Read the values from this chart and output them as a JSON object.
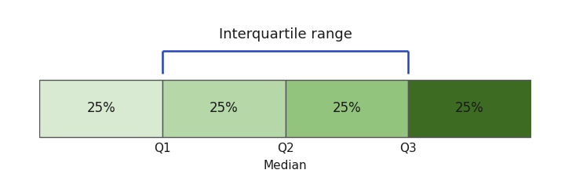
{
  "bar_colors": [
    "#d9ead3",
    "#b6d7a8",
    "#93c47d",
    "#3d6b21"
  ],
  "labels": [
    "25%",
    "25%",
    "25%",
    "25%"
  ],
  "quartile_labels": [
    "Q1",
    "Q2",
    "Q3"
  ],
  "median_label": "Median",
  "iqr_label": "Interquartile range",
  "background_color": "#ffffff",
  "text_color": "#1a1a1a",
  "bracket_color": "#2244bb",
  "edge_color": "#555555",
  "label_fontsize": 12,
  "iqr_fontsize": 13,
  "tick_fontsize": 11,
  "label_fontweight": "normal"
}
